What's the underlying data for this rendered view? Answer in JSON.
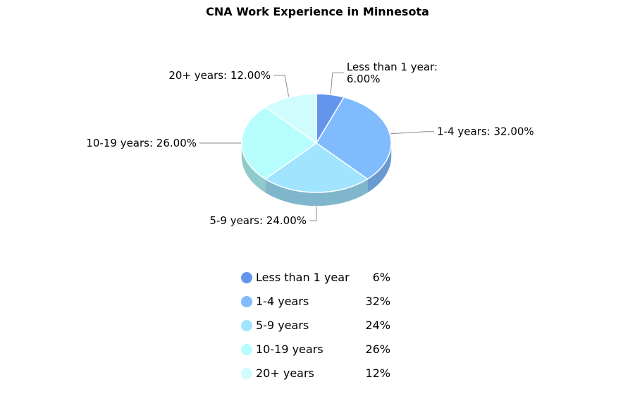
{
  "chart_data": {
    "type": "pie",
    "title": "CNA Work Experience in Minnesota",
    "categories": [
      "Less than 1 year",
      "1-4 years",
      "5-9 years",
      "10-19 years",
      "20+ years"
    ],
    "values": [
      6,
      32,
      24,
      26,
      12
    ],
    "slice_labels": [
      [
        "Less than 1 year:",
        "6.00%"
      ],
      [
        "1-4 years: 32.00%"
      ],
      [
        "5-9 years: 24.00%"
      ],
      [
        "10-19 years: 26.00%"
      ],
      [
        "20+ years: 12.00%"
      ]
    ],
    "legend": {
      "placement": "bottom",
      "entries": [
        {
          "name": "Less than 1 year",
          "value": "6%"
        },
        {
          "name": "1-4 years",
          "value": "32%"
        },
        {
          "name": "5-9 years",
          "value": "24%"
        },
        {
          "name": "10-19 years",
          "value": "26%"
        },
        {
          "name": "20+ years",
          "value": "12%"
        }
      ]
    },
    "colors": [
      "#6495ed",
      "#80bbfd",
      "#a0e4ff",
      "#b6fdfd",
      "#d0fcfd"
    ],
    "side_colors": [
      "#4f78c0",
      "#6a9ad0",
      "#7fb6cb",
      "#91cacb",
      "#a6caca"
    ]
  }
}
